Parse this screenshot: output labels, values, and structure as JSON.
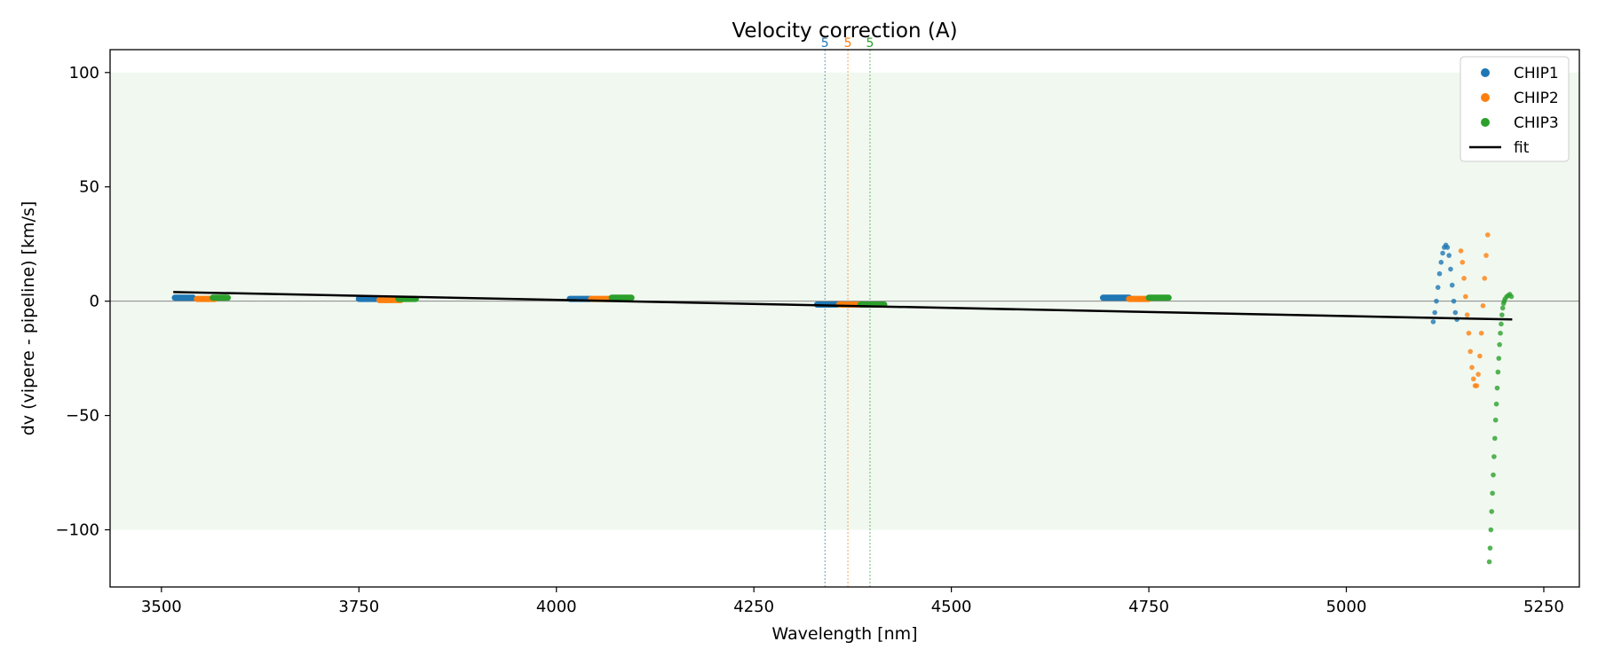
{
  "chart_data": {
    "type": "scatter",
    "title": "Velocity correction (A)",
    "xlabel": "Wavelength [nm]",
    "ylabel": "dv (vipere - pipeline) [km/s]",
    "xlim": [
      3435,
      5295
    ],
    "ylim": [
      -125,
      110
    ],
    "x_ticks": [
      3500,
      3750,
      4000,
      4250,
      4500,
      4750,
      5000,
      5250
    ],
    "y_ticks": [
      -100,
      -50,
      0,
      50,
      100
    ],
    "y_tick_labels": [
      "−100",
      "−50",
      "0",
      "50",
      "100"
    ],
    "grid": false,
    "legend_position": "top-right",
    "shaded_band": {
      "y0": -100,
      "y1": 100,
      "color": "#e8f5e8"
    },
    "zero_line": {
      "y": 0
    },
    "vertical_lines": [
      {
        "x": 4340,
        "label": "5",
        "color": "#1f77b4"
      },
      {
        "x": 4369,
        "label": "5",
        "color": "#ff7f0e"
      },
      {
        "x": 4397,
        "label": "5",
        "color": "#2ca02c"
      }
    ],
    "series": [
      {
        "name": "CHIP1",
        "color": "#1f77b4",
        "segments": [
          {
            "x": [
              3517,
              3540
            ],
            "y": [
              1.5,
              1.5
            ]
          },
          {
            "x": [
              3750,
              3776
            ],
            "y": [
              1.0,
              1.0
            ]
          },
          {
            "x": [
              4017,
              4043
            ],
            "y": [
              1.0,
              1.0
            ]
          },
          {
            "x": [
              4330,
              4358
            ],
            "y": [
              -1.5,
              -1.5
            ]
          },
          {
            "x": [
              4692,
              4725
            ],
            "y": [
              1.5,
              1.5
            ]
          }
        ],
        "points": [
          [
            5110,
            -9
          ],
          [
            5112,
            -5
          ],
          [
            5114,
            0
          ],
          [
            5116,
            6
          ],
          [
            5118,
            12
          ],
          [
            5120,
            17
          ],
          [
            5122,
            21
          ],
          [
            5124,
            23.5
          ],
          [
            5126,
            24.5
          ],
          [
            5128,
            23.5
          ],
          [
            5130,
            20
          ],
          [
            5132,
            14
          ],
          [
            5134,
            7
          ],
          [
            5136,
            0
          ],
          [
            5138,
            -5
          ],
          [
            5140,
            -8
          ]
        ]
      },
      {
        "name": "CHIP2",
        "color": "#ff7f0e",
        "segments": [
          {
            "x": [
              3545,
              3568
            ],
            "y": [
              1.0,
              1.0
            ]
          },
          {
            "x": [
              3776,
              3803
            ],
            "y": [
              0.5,
              0.5
            ]
          },
          {
            "x": [
              4044,
              4070
            ],
            "y": [
              1.0,
              1.0
            ]
          },
          {
            "x": [
              4358,
              4385
            ],
            "y": [
              -1.5,
              -1.5
            ]
          },
          {
            "x": [
              4725,
              4750
            ],
            "y": [
              1.0,
              1.0
            ]
          }
        ],
        "points": [
          [
            5145,
            22
          ],
          [
            5147,
            17
          ],
          [
            5149,
            10
          ],
          [
            5151,
            2
          ],
          [
            5153,
            -6
          ],
          [
            5155,
            -14
          ],
          [
            5157,
            -22
          ],
          [
            5159,
            -29
          ],
          [
            5161,
            -34
          ],
          [
            5163,
            -37
          ],
          [
            5165,
            -37
          ],
          [
            5167,
            -32
          ],
          [
            5169,
            -24
          ],
          [
            5171,
            -14
          ],
          [
            5173,
            -2
          ],
          [
            5175,
            10
          ],
          [
            5177,
            20
          ],
          [
            5179,
            29
          ]
        ]
      },
      {
        "name": "CHIP3",
        "color": "#2ca02c",
        "segments": [
          {
            "x": [
              3565,
              3584
            ],
            "y": [
              1.5,
              1.5
            ]
          },
          {
            "x": [
              3800,
              3822
            ],
            "y": [
              1.0,
              1.0
            ]
          },
          {
            "x": [
              4070,
              4095
            ],
            "y": [
              1.5,
              1.5
            ]
          },
          {
            "x": [
              4385,
              4415
            ],
            "y": [
              -1.5,
              -1.5
            ]
          },
          {
            "x": [
              4750,
              4775
            ],
            "y": [
              1.5,
              1.5
            ]
          }
        ],
        "points": [
          [
            5181,
            -114
          ],
          [
            5182,
            -108
          ],
          [
            5183,
            -100
          ],
          [
            5184,
            -92
          ],
          [
            5185,
            -84
          ],
          [
            5186,
            -76
          ],
          [
            5187,
            -68
          ],
          [
            5188,
            -60
          ],
          [
            5189,
            -52
          ],
          [
            5190,
            -45
          ],
          [
            5191,
            -38
          ],
          [
            5192,
            -31
          ],
          [
            5193,
            -25
          ],
          [
            5194,
            -19
          ],
          [
            5195,
            -14
          ],
          [
            5196,
            -10
          ],
          [
            5197,
            -6
          ],
          [
            5198,
            -3
          ],
          [
            5199,
            -1
          ],
          [
            5200,
            0
          ],
          [
            5201,
            1
          ],
          [
            5203,
            2
          ],
          [
            5205,
            2.5
          ],
          [
            5207,
            3
          ],
          [
            5209,
            2
          ]
        ]
      },
      {
        "name": "fit",
        "color": "#000000",
        "line": {
          "x": [
            3515,
            5210
          ],
          "y": [
            4,
            -8
          ]
        }
      }
    ]
  }
}
